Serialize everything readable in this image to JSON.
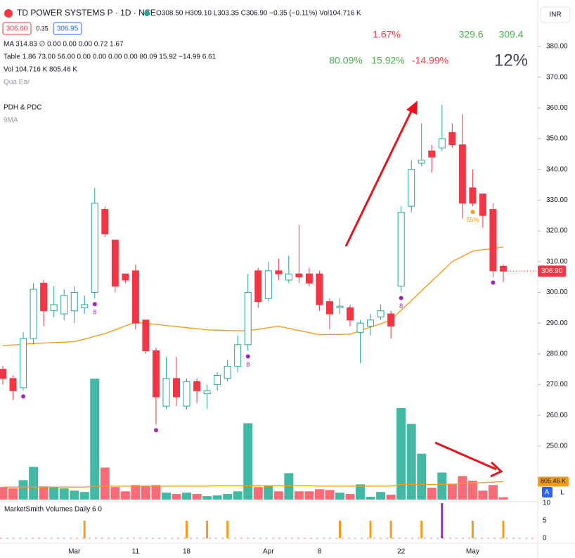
{
  "chart_data": {
    "type": "candlestick",
    "header": {
      "symbol": "TD POWER SYSTEMS P · 1D · NSE",
      "ohlc": "O308.50 H309.10 L303.35 C306.90 −0.35 (−0.11%) Vol104.716 K",
      "bid": "306.60",
      "spread": "0.35",
      "ask": "306.95",
      "currency": "INR"
    },
    "indicators": [
      "MA 314.83 ∅ 0.00 0.00 0.00 0.72 1.67",
      "Table 1.86 73.00 56.00 0.00 0.00 0.00 0.00 80.09 15.92 −14.99 6.61",
      "Vol 104.716 K 805.46 K",
      "Qua Ear",
      "PDH & PDC",
      "9MA"
    ],
    "annotations": [
      {
        "text": "1.67%",
        "color": "#f23645"
      },
      {
        "text": "329.6",
        "color": "#4caf50"
      },
      {
        "text": "309.4",
        "color": "#4caf50"
      },
      {
        "text": "80.09%",
        "color": "#4caf50"
      },
      {
        "text": "15.92%",
        "color": "#4caf50"
      },
      {
        "text": "-14.99%",
        "color": "#f23645"
      },
      {
        "text": "12%",
        "color": "#434651"
      }
    ],
    "categories": [
      null,
      null,
      null,
      null,
      null,
      null,
      null,
      "Mar",
      null,
      null,
      null,
      null,
      null,
      "11",
      null,
      null,
      null,
      null,
      "18",
      null,
      null,
      null,
      null,
      null,
      null,
      null,
      "Apr",
      null,
      null,
      null,
      null,
      "8",
      null,
      null,
      null,
      null,
      null,
      null,
      null,
      "22",
      null,
      null,
      null,
      null,
      null,
      null,
      "May",
      null,
      null,
      null
    ],
    "open": [
      275,
      272,
      269,
      285,
      303,
      294,
      293,
      294,
      295,
      300,
      327,
      317,
      306,
      307,
      291,
      281,
      263,
      272,
      263,
      271,
      267,
      270,
      272,
      276,
      283,
      307,
      298,
      307,
      304,
      306,
      306,
      306,
      297,
      295,
      295,
      287,
      289,
      292,
      293,
      302,
      328,
      342,
      346,
      347,
      352,
      348,
      334,
      332,
      327,
      308.5
    ],
    "high": [
      276,
      273,
      287,
      303,
      304,
      302,
      301,
      302,
      299,
      334,
      328,
      317,
      306,
      309,
      291,
      282,
      279,
      279,
      272,
      272,
      270,
      274,
      278,
      286,
      306,
      308,
      310,
      311,
      312,
      322,
      308,
      307,
      298,
      298,
      296,
      291,
      293,
      296,
      294,
      328,
      343,
      355,
      348,
      361,
      355,
      358,
      340,
      332,
      329,
      309.1
    ],
    "low": [
      270,
      265,
      268,
      283,
      289,
      292,
      291,
      290,
      293,
      298,
      318,
      300,
      303,
      288,
      280,
      257,
      262,
      263,
      262,
      264,
      262,
      268,
      271,
      274,
      281,
      295,
      297,
      304,
      303,
      303,
      302,
      294,
      288,
      293,
      289,
      277,
      286,
      291,
      285,
      300,
      326,
      341,
      339,
      346,
      347,
      324,
      328,
      321,
      305,
      303.35
    ],
    "close": [
      272,
      268,
      285,
      301,
      294,
      296,
      299,
      300,
      296,
      329,
      319,
      302,
      304,
      290,
      281,
      266,
      272,
      266,
      271,
      268,
      268,
      273,
      276,
      283,
      300,
      297,
      307,
      306,
      306,
      305,
      303,
      296,
      293,
      295.5,
      291,
      290,
      291,
      294,
      289,
      326,
      340,
      343,
      344,
      350,
      348,
      329,
      329,
      325,
      307,
      306.9
    ],
    "up_color": "#26a69a",
    "down_color": "#f23645",
    "last_price": {
      "value": 306.9,
      "label": "306.90"
    },
    "ma": {
      "color": "#f59d1a",
      "values": [
        282.7,
        282.9,
        283.1,
        283.4,
        283.5,
        283.7,
        283.8,
        284.0,
        284.8,
        285.7,
        286.6,
        287.8,
        289.1,
        290.3,
        289.9,
        289.6,
        289.2,
        288.9,
        288.5,
        288.2,
        287.8,
        287.7,
        287.6,
        287.5,
        287.5,
        288.0,
        288.5,
        289.0,
        288.3,
        287.6,
        286.9,
        286.2,
        286.3,
        286.3,
        286.4,
        287.5,
        288.7,
        289.8,
        291.0,
        294.2,
        297.3,
        300.5,
        303.7,
        306.8,
        310.0,
        311.7,
        313.4,
        313.9,
        314.3,
        314.8
      ]
    },
    "volume": {
      "up_color": "#22ab94",
      "down_color": "#f7525f",
      "values": [
        560,
        500,
        870,
        1460,
        590,
        560,
        500,
        400,
        340,
        5400,
        1430,
        560,
        370,
        650,
        620,
        650,
        310,
        250,
        310,
        250,
        155,
        186,
        250,
        370,
        3410,
        560,
        620,
        370,
        1180,
        370,
        370,
        465,
        430,
        310,
        250,
        680,
        124,
        340,
        220,
        4090,
        3380,
        2050,
        530,
        1210,
        710,
        1050,
        840,
        400,
        650,
        105
      ],
      "ma_color": "#f59d1a",
      "ma": [
        560,
        560,
        560,
        560,
        560,
        560,
        560,
        560,
        560,
        600,
        600,
        600,
        600,
        600,
        600,
        600,
        600,
        600,
        600,
        600,
        600,
        620,
        620,
        620,
        620,
        620,
        620,
        620,
        620,
        620,
        620,
        600,
        600,
        600,
        600,
        600,
        600,
        600,
        600,
        680,
        680,
        680,
        680,
        680,
        680,
        720,
        740,
        760,
        780,
        805.46
      ],
      "ma_label": "805.46 K",
      "ylim": [
        0,
        22000
      ]
    },
    "signals": {
      "color": "#9c27b0",
      "items": [
        {
          "candle": 2
        },
        {
          "candle": 9,
          "label": "8"
        },
        {
          "candle": 15
        },
        {
          "candle": 24,
          "label": "8"
        },
        {
          "candle": 39,
          "label": "8"
        },
        {
          "candle": 46,
          "label": "55%",
          "color": "#f59d1a"
        },
        {
          "candle": 48
        }
      ]
    },
    "ylim": [
      232.6,
      392.8
    ],
    "yticks": [
      {
        "value": 250,
        "label": "250.00"
      },
      {
        "value": 260,
        "label": "260.00"
      },
      {
        "value": 270,
        "label": "270.00"
      },
      {
        "value": 280,
        "label": "280.00"
      },
      {
        "value": 290,
        "label": "290.00"
      },
      {
        "value": 300,
        "label": "300.00"
      },
      {
        "value": 310,
        "label": "310.00"
      },
      {
        "value": 320,
        "label": "320.00"
      },
      {
        "value": 330,
        "label": "330.00"
      },
      {
        "value": 340,
        "label": "340.00"
      },
      {
        "value": 350,
        "label": "350.00"
      },
      {
        "value": 360,
        "label": "360.00"
      },
      {
        "value": 370,
        "label": "370.00"
      },
      {
        "value": 380,
        "label": "380.00"
      }
    ],
    "lower_pane": {
      "title": "MarketSmith Volumes Daily 6 0",
      "ylim": [
        0,
        10
      ],
      "yticks": [
        0,
        5,
        10
      ],
      "series": [
        {
          "color": "#f59d1a",
          "values": [
            null,
            null,
            null,
            null,
            null,
            null,
            null,
            null,
            5,
            null,
            null,
            null,
            null,
            null,
            null,
            null,
            null,
            null,
            5,
            null,
            5,
            null,
            5,
            null,
            null,
            null,
            null,
            null,
            null,
            null,
            null,
            null,
            null,
            5,
            null,
            null,
            5,
            null,
            5,
            null,
            null,
            5,
            null,
            null,
            null,
            null,
            5,
            null,
            null,
            5
          ]
        },
        {
          "color": "#9c27b0",
          "values": [
            null,
            null,
            null,
            null,
            null,
            null,
            null,
            null,
            null,
            null,
            null,
            null,
            null,
            null,
            null,
            null,
            null,
            null,
            null,
            null,
            null,
            null,
            null,
            null,
            null,
            null,
            null,
            null,
            null,
            null,
            null,
            null,
            null,
            null,
            null,
            null,
            null,
            null,
            null,
            null,
            null,
            null,
            null,
            10,
            null,
            null,
            null,
            null,
            null,
            null
          ]
        }
      ]
    }
  }
}
